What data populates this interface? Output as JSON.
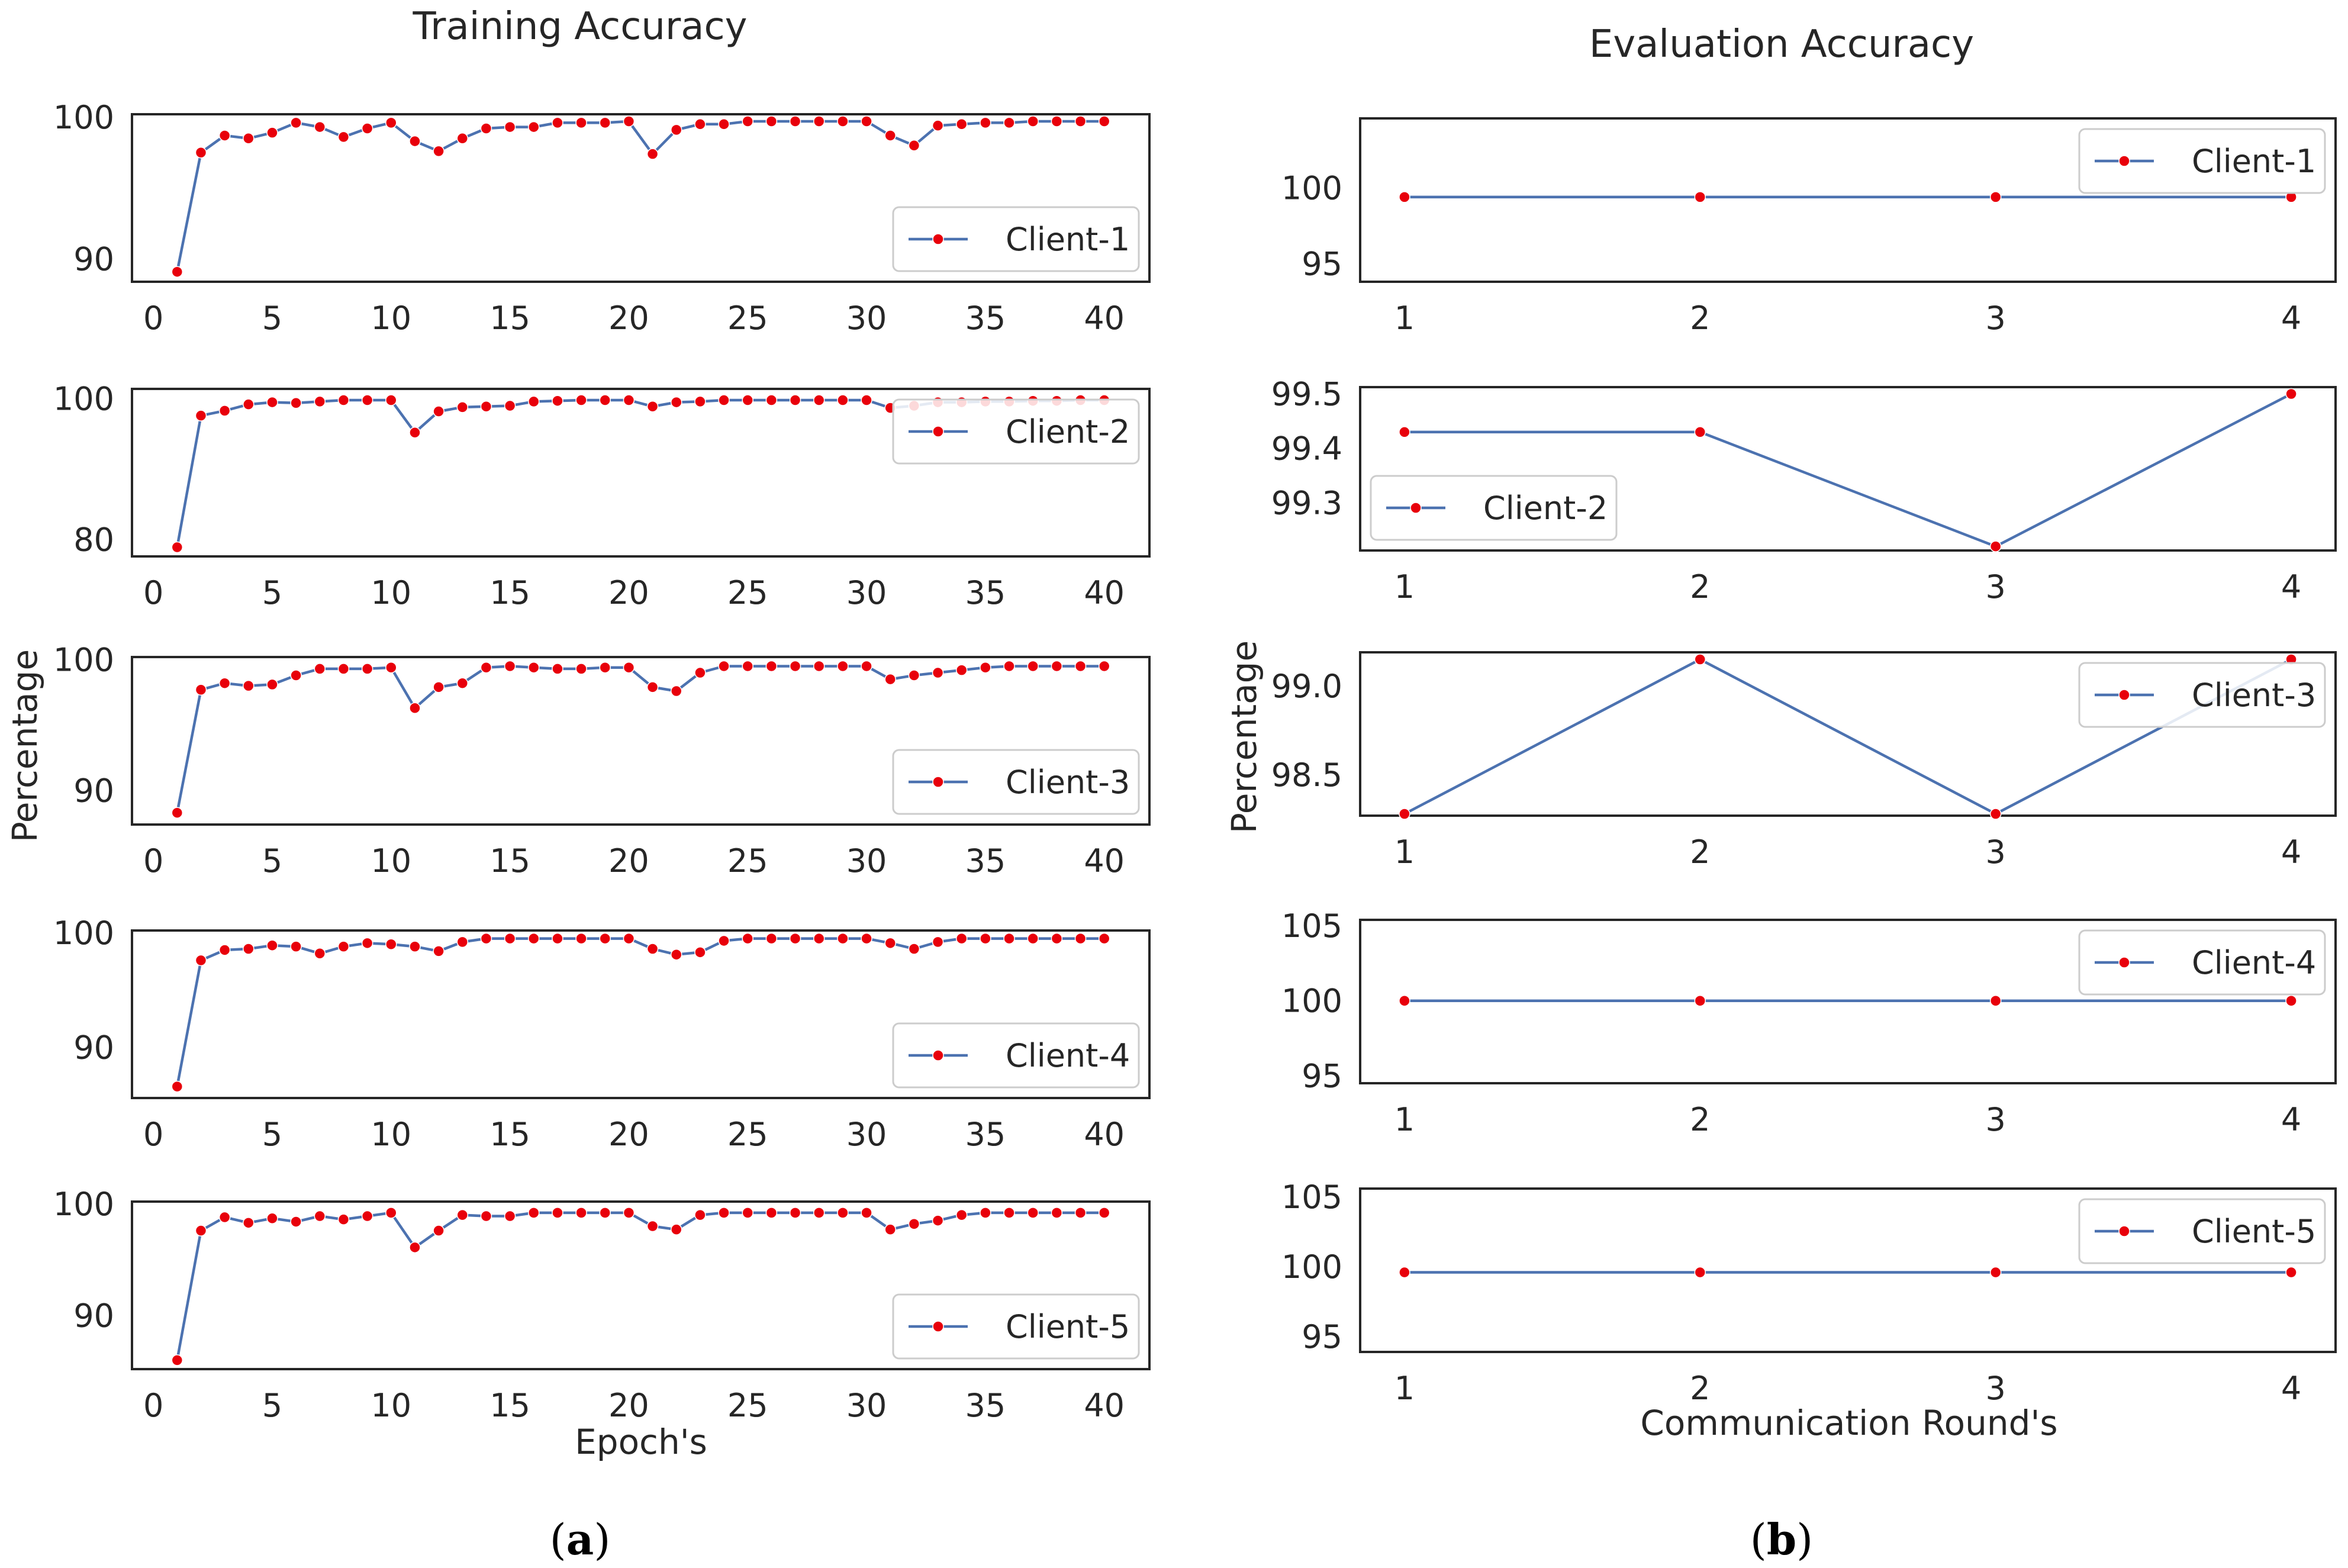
{
  "colors": {
    "line": "#4c72b0",
    "marker": "#e8000b",
    "axes": "#262626",
    "text": "#262626",
    "background": "#ffffff"
  },
  "panels": {
    "a": {
      "label_open": "(",
      "label_letter": "a",
      "label_close": ")"
    },
    "b": {
      "label_open": "(",
      "label_letter": "b",
      "label_close": ")"
    }
  },
  "chart_data": [
    {
      "type": "line",
      "panel": "a",
      "title": "Training Accuracy",
      "xlabel": "Epoch's",
      "ylabel": "Percentage",
      "x": [
        1,
        2,
        3,
        4,
        5,
        6,
        7,
        8,
        9,
        10,
        11,
        12,
        13,
        14,
        15,
        16,
        17,
        18,
        19,
        20,
        21,
        22,
        23,
        24,
        25,
        26,
        27,
        28,
        29,
        30,
        31,
        32,
        33,
        34,
        35,
        36,
        37,
        38,
        39,
        40
      ],
      "xlim": [
        -0.9,
        41.9
      ],
      "xticks": [
        0,
        5,
        10,
        15,
        20,
        25,
        30,
        35,
        40
      ],
      "xtick_labels": [
        "0",
        "5",
        "10",
        "15",
        "20",
        "25",
        "30",
        "35",
        "40"
      ],
      "grid": false,
      "subplots": [
        {
          "name": "Client-1",
          "legend": "lower-right",
          "ylim": [
            88.4,
            100.2
          ],
          "yticks": [
            90,
            100
          ],
          "ytick_labels": [
            "90",
            "100"
          ],
          "values": [
            89.1,
            97.5,
            98.7,
            98.5,
            98.9,
            99.6,
            99.3,
            98.6,
            99.2,
            99.6,
            98.3,
            97.6,
            98.5,
            99.2,
            99.3,
            99.3,
            99.6,
            99.6,
            99.6,
            99.7,
            97.4,
            99.1,
            99.5,
            99.5,
            99.7,
            99.7,
            99.7,
            99.7,
            99.7,
            99.7,
            98.7,
            98.0,
            99.4,
            99.5,
            99.6,
            99.6,
            99.7,
            99.7,
            99.7,
            99.7
          ]
        },
        {
          "name": "Client-2",
          "legend": "upper-right",
          "ylim": [
            77.6,
            101.4
          ],
          "yticks": [
            80,
            100
          ],
          "ytick_labels": [
            "80",
            "100"
          ],
          "values": [
            78.9,
            97.6,
            98.3,
            99.2,
            99.5,
            99.4,
            99.6,
            99.8,
            99.8,
            99.8,
            95.2,
            98.2,
            98.8,
            98.9,
            99.0,
            99.6,
            99.7,
            99.8,
            99.8,
            99.8,
            98.9,
            99.5,
            99.6,
            99.8,
            99.8,
            99.8,
            99.8,
            99.8,
            99.8,
            99.8,
            98.7,
            99.0,
            99.5,
            99.5,
            99.6,
            99.6,
            99.7,
            99.7,
            99.8,
            99.8
          ]
        },
        {
          "name": "Client-3",
          "legend": "lower-right",
          "ylim": [
            87.4,
            100.2
          ],
          "yticks": [
            90,
            100
          ],
          "ytick_labels": [
            "90",
            "100"
          ],
          "values": [
            88.3,
            97.7,
            98.2,
            98.0,
            98.1,
            98.8,
            99.3,
            99.3,
            99.3,
            99.4,
            96.3,
            97.9,
            98.2,
            99.4,
            99.5,
            99.4,
            99.3,
            99.3,
            99.4,
            99.4,
            97.9,
            97.6,
            99.0,
            99.5,
            99.5,
            99.5,
            99.5,
            99.5,
            99.5,
            99.5,
            98.5,
            98.8,
            99.0,
            99.2,
            99.4,
            99.5,
            99.5,
            99.5,
            99.5,
            99.5
          ]
        },
        {
          "name": "Client-4",
          "legend": "lower-right",
          "ylim": [
            85.6,
            100.2
          ],
          "yticks": [
            90,
            100
          ],
          "ytick_labels": [
            "90",
            "100"
          ],
          "values": [
            86.6,
            97.6,
            98.5,
            98.6,
            98.9,
            98.8,
            98.2,
            98.8,
            99.1,
            99.0,
            98.8,
            98.4,
            99.2,
            99.5,
            99.5,
            99.5,
            99.5,
            99.5,
            99.5,
            99.5,
            98.6,
            98.1,
            98.3,
            99.3,
            99.5,
            99.5,
            99.5,
            99.5,
            99.5,
            99.5,
            99.1,
            98.6,
            99.2,
            99.5,
            99.5,
            99.5,
            99.5,
            99.5,
            99.5,
            99.5
          ]
        },
        {
          "name": "Client-5",
          "legend": "lower-right",
          "ylim": [
            85.2,
            100.2
          ],
          "yticks": [
            90,
            100
          ],
          "ytick_labels": [
            "90",
            "100"
          ],
          "values": [
            86.0,
            97.6,
            98.8,
            98.3,
            98.7,
            98.4,
            98.9,
            98.6,
            98.9,
            99.2,
            96.1,
            97.6,
            99.0,
            98.9,
            98.9,
            99.2,
            99.2,
            99.2,
            99.2,
            99.2,
            98.0,
            97.7,
            99.0,
            99.2,
            99.2,
            99.2,
            99.2,
            99.2,
            99.2,
            99.2,
            97.7,
            98.2,
            98.5,
            99.0,
            99.2,
            99.2,
            99.2,
            99.2,
            99.2,
            99.2
          ]
        }
      ]
    },
    {
      "type": "line",
      "panel": "b",
      "title": "Evaluation Accuracy",
      "xlabel": "Communication Round's",
      "ylabel": "Percentage",
      "x": [
        1,
        2,
        3,
        4
      ],
      "xlim": [
        0.85,
        4.15
      ],
      "xticks": [
        1,
        2,
        3,
        4
      ],
      "xtick_labels": [
        "1",
        "2",
        "3",
        "4"
      ],
      "grid": false,
      "subplots": [
        {
          "name": "Client-1",
          "legend": "upper-right",
          "ylim": [
            93.8,
            104.6
          ],
          "yticks": [
            95,
            100
          ],
          "ytick_labels": [
            "95",
            "100"
          ],
          "values": [
            99.4,
            99.4,
            99.4,
            99.4
          ]
        },
        {
          "name": "Client-2",
          "legend": "lower-left",
          "ylim": [
            99.2125,
            99.5125
          ],
          "yticks": [
            99.3,
            99.4,
            99.5
          ],
          "ytick_labels": [
            "99.3",
            "99.4",
            "99.5"
          ],
          "values": [
            99.43,
            99.43,
            99.22,
            99.5
          ]
        },
        {
          "name": "Client-3",
          "legend": "upper-right",
          "ylim": [
            98.27,
            99.19
          ],
          "yticks": [
            98.5,
            99.0
          ],
          "ytick_labels": [
            "98.5",
            "99.0"
          ],
          "values": [
            98.28,
            99.15,
            98.28,
            99.15
          ]
        },
        {
          "name": "Client-4",
          "legend": "upper-right",
          "ylim": [
            94.5,
            105.4
          ],
          "yticks": [
            95,
            100,
            105
          ],
          "ytick_labels": [
            "95",
            "100",
            "105"
          ],
          "values": [
            100.0,
            100.0,
            100.0,
            100.0
          ]
        },
        {
          "name": "Client-5",
          "legend": "upper-right",
          "ylim": [
            93.9,
            105.6
          ],
          "yticks": [
            95,
            100,
            105
          ],
          "ytick_labels": [
            "95",
            "100",
            "105"
          ],
          "values": [
            99.6,
            99.6,
            99.6,
            99.6
          ]
        }
      ]
    }
  ]
}
